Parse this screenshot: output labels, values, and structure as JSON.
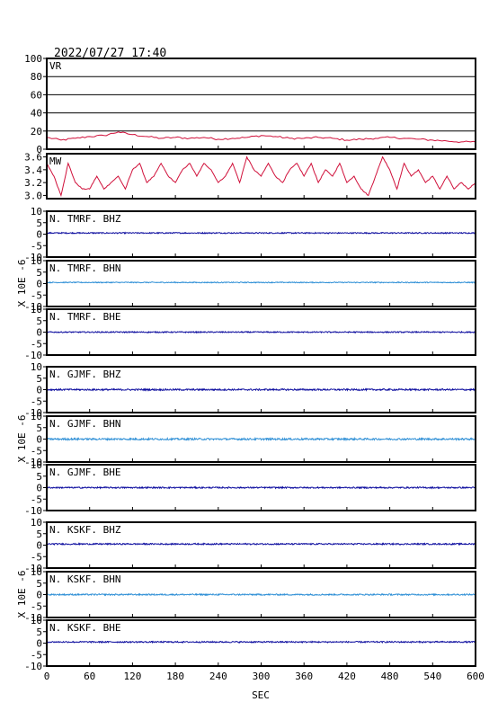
{
  "timestamp": "2022/07/27  17:40",
  "x_axis": {
    "label": "SEC",
    "min": 0,
    "max": 600,
    "ticks": [
      0,
      60,
      120,
      180,
      240,
      300,
      360,
      420,
      480,
      540,
      600
    ]
  },
  "seismo_unit_label": "X 10E -6",
  "colors": {
    "frame": "#000000",
    "grid": "#000000",
    "dark_blue": "#1010a0",
    "light_blue": "#2e8fd6",
    "red": "#d0103a"
  },
  "chart_data": [
    {
      "type": "line",
      "label": "VR",
      "ylim": [
        0,
        100
      ],
      "yticks": [
        0,
        20,
        40,
        60,
        80,
        100
      ],
      "grid": true,
      "color": "#d0103a",
      "series": [
        {
          "x": [
            0,
            20,
            40,
            60,
            80,
            100,
            120,
            140,
            160,
            180,
            200,
            220,
            240,
            260,
            280,
            300,
            320,
            340,
            360,
            380,
            400,
            420,
            440,
            460,
            480,
            500,
            520,
            540,
            560,
            580,
            600
          ],
          "values": [
            13,
            10,
            12,
            14,
            15,
            19,
            16,
            14,
            12,
            13,
            12,
            13,
            11,
            12,
            13,
            15,
            14,
            12,
            12,
            13,
            12,
            10,
            11,
            12,
            13,
            12,
            11,
            10,
            9,
            8,
            8
          ]
        }
      ]
    },
    {
      "type": "line",
      "label": "MW",
      "ylim": [
        2.95,
        3.65
      ],
      "yticks": [
        3.0,
        3.2,
        3.4,
        3.6
      ],
      "ytick_labels": [
        "3.0",
        "3.2",
        "3.4",
        "3.6"
      ],
      "grid": false,
      "color": "#d0103a",
      "series": [
        {
          "x": [
            0,
            10,
            20,
            30,
            40,
            50,
            60,
            70,
            80,
            90,
            100,
            110,
            120,
            130,
            140,
            150,
            160,
            170,
            180,
            190,
            200,
            210,
            220,
            230,
            240,
            250,
            260,
            270,
            280,
            290,
            300,
            310,
            320,
            330,
            340,
            350,
            360,
            370,
            380,
            390,
            400,
            410,
            420,
            430,
            440,
            450,
            460,
            470,
            480,
            490,
            500,
            510,
            520,
            530,
            540,
            550,
            560,
            570,
            580,
            590,
            600
          ],
          "values": [
            3.5,
            3.3,
            3.0,
            3.5,
            3.2,
            3.1,
            3.1,
            3.3,
            3.1,
            3.2,
            3.3,
            3.1,
            3.4,
            3.5,
            3.2,
            3.3,
            3.5,
            3.3,
            3.2,
            3.4,
            3.5,
            3.3,
            3.5,
            3.4,
            3.2,
            3.3,
            3.5,
            3.2,
            3.6,
            3.4,
            3.3,
            3.5,
            3.3,
            3.2,
            3.4,
            3.5,
            3.3,
            3.5,
            3.2,
            3.4,
            3.3,
            3.5,
            3.2,
            3.3,
            3.1,
            3.0,
            3.3,
            3.6,
            3.4,
            3.1,
            3.5,
            3.3,
            3.4,
            3.2,
            3.3,
            3.1,
            3.3,
            3.1,
            3.2,
            3.1,
            3.2
          ]
        }
      ]
    },
    {
      "type": "line",
      "label": "N. TMRF. BHZ",
      "ylim": [
        -10,
        10
      ],
      "yticks": [
        -10,
        -5,
        0,
        5,
        10
      ],
      "color": "#1010a0",
      "baseline": 0.5,
      "noise_amplitude": 0.25
    },
    {
      "type": "line",
      "label": "N. TMRF. BHN",
      "ylim": [
        -10,
        10
      ],
      "yticks": [
        -10,
        -5,
        0,
        5,
        10
      ],
      "color": "#2e8fd6",
      "baseline": 0.5,
      "noise_amplitude": 0.2
    },
    {
      "type": "line",
      "label": "N. TMRF. BHE",
      "ylim": [
        -10,
        10
      ],
      "yticks": [
        -10,
        -5,
        0,
        5,
        10
      ],
      "color": "#1010a0",
      "baseline": 0.0,
      "noise_amplitude": 0.25
    },
    {
      "type": "line",
      "label": "N. GJMF. BHZ",
      "ylim": [
        -10,
        10
      ],
      "yticks": [
        -10,
        -5,
        0,
        5,
        10
      ],
      "color": "#1010a0",
      "baseline": 0.0,
      "noise_amplitude": 0.35
    },
    {
      "type": "line",
      "label": "N. GJMF. BHN",
      "ylim": [
        -10,
        10
      ],
      "yticks": [
        -10,
        -5,
        0,
        5,
        10
      ],
      "color": "#2e8fd6",
      "baseline": 0.0,
      "noise_amplitude": 0.4
    },
    {
      "type": "line",
      "label": "N. GJMF. BHE",
      "ylim": [
        -10,
        10
      ],
      "yticks": [
        -10,
        -5,
        0,
        5,
        10
      ],
      "color": "#1010a0",
      "baseline": 0.0,
      "noise_amplitude": 0.3
    },
    {
      "type": "line",
      "label": "N. KSKF. BHZ",
      "ylim": [
        -10,
        10
      ],
      "yticks": [
        -10,
        -5,
        0,
        5,
        10
      ],
      "color": "#1010a0",
      "baseline": 0.5,
      "noise_amplitude": 0.3
    },
    {
      "type": "line",
      "label": "N. KSKF. BHN",
      "ylim": [
        -10,
        10
      ],
      "yticks": [
        -10,
        -5,
        0,
        5,
        10
      ],
      "color": "#2e8fd6",
      "baseline": 0.0,
      "noise_amplitude": 0.3
    },
    {
      "type": "line",
      "label": "N. KSKF. BHE",
      "ylim": [
        -10,
        10
      ],
      "yticks": [
        -10,
        -5,
        0,
        5,
        10
      ],
      "color": "#1010a0",
      "baseline": 0.5,
      "noise_amplitude": 0.3
    }
  ]
}
